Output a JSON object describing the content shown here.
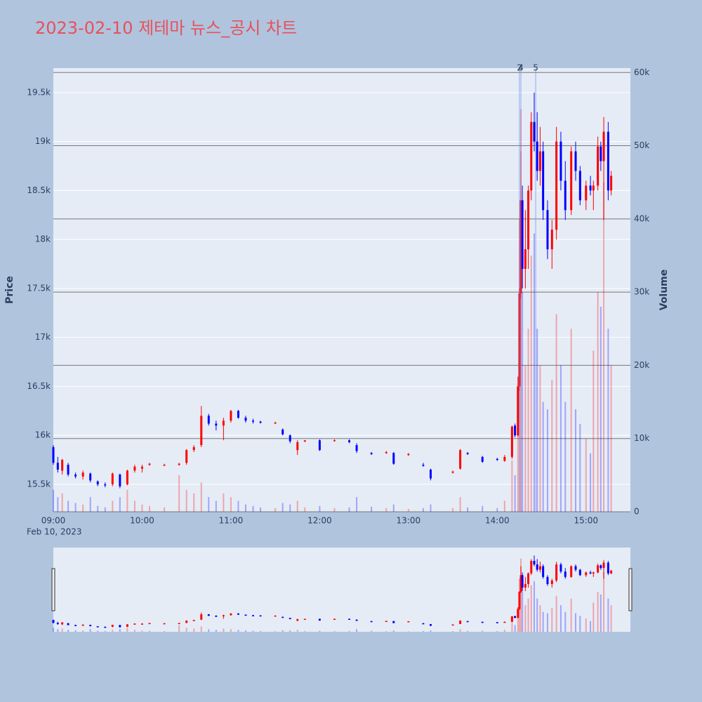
{
  "chart_data": {
    "type": "candlestick",
    "title": "2023-02-10 제테마 뉴스_공시 차트",
    "x_date_label": "Feb 10, 2023",
    "y_label": "Price",
    "y2_label": "Volume",
    "up_color": "#ff0000",
    "down_color": "#0000ff",
    "annotations": [
      {
        "x": "14:15",
        "text": "2"
      },
      {
        "x": "14:16",
        "text": "4"
      },
      {
        "x": "14:26",
        "text": "5"
      }
    ],
    "x": [
      "09:00",
      "09:03",
      "09:06",
      "09:10",
      "09:15",
      "09:20",
      "09:25",
      "09:30",
      "09:35",
      "09:40",
      "09:45",
      "09:50",
      "09:55",
      "10:00",
      "10:05",
      "10:15",
      "10:25",
      "10:30",
      "10:35",
      "10:40",
      "10:45",
      "10:50",
      "10:55",
      "11:00",
      "11:05",
      "11:10",
      "11:15",
      "11:20",
      "11:30",
      "11:35",
      "11:40",
      "11:45",
      "11:50",
      "12:00",
      "12:10",
      "12:20",
      "12:25",
      "12:35",
      "12:45",
      "12:50",
      "13:00",
      "13:10",
      "13:15",
      "13:30",
      "13:35",
      "13:40",
      "13:50",
      "14:00",
      "14:05",
      "14:10",
      "14:12",
      "14:14",
      "14:15",
      "14:16",
      "14:17",
      "14:19",
      "14:21",
      "14:23",
      "14:25",
      "14:27",
      "14:29",
      "14:31",
      "14:34",
      "14:37",
      "14:40",
      "14:43",
      "14:46",
      "14:50",
      "14:53",
      "14:56",
      "15:00",
      "15:03",
      "15:05",
      "15:08",
      "15:10",
      "15:12",
      "15:15",
      "15:17"
    ],
    "open": [
      15880,
      15720,
      15640,
      15700,
      15600,
      15580,
      15610,
      15530,
      15500,
      15500,
      15600,
      15500,
      15640,
      15660,
      15700,
      15700,
      15700,
      15720,
      15850,
      15900,
      16200,
      16120,
      16100,
      16150,
      16250,
      16180,
      16150,
      16140,
      16130,
      16060,
      16000,
      15850,
      15940,
      15950,
      15950,
      15950,
      15900,
      15820,
      15820,
      15820,
      15800,
      15700,
      15650,
      15620,
      15660,
      15820,
      15780,
      15760,
      15740,
      15780,
      16100,
      16000,
      16500,
      17450,
      18400,
      17700,
      17900,
      18500,
      19200,
      19000,
      18700,
      18900,
      18300,
      17900,
      18100,
      19000,
      18600,
      18300,
      18900,
      18700,
      18400,
      18550,
      18500,
      18550,
      18950,
      18800,
      19100,
      18500
    ],
    "high": [
      15900,
      15780,
      15760,
      15720,
      15620,
      15640,
      15620,
      15540,
      15520,
      15620,
      15610,
      15650,
      15700,
      15700,
      15720,
      15710,
      15720,
      15860,
      15900,
      16300,
      16220,
      16150,
      16180,
      16260,
      16260,
      16200,
      16170,
      16150,
      16140,
      16070,
      16010,
      15950,
      15950,
      15960,
      15960,
      15960,
      15920,
      15830,
      15840,
      15830,
      15820,
      15720,
      15660,
      15640,
      15860,
      15830,
      15790,
      15770,
      15800,
      16100,
      16120,
      16600,
      17500,
      18900,
      18550,
      18300,
      18550,
      19300,
      19500,
      19300,
      19150,
      19000,
      18400,
      18200,
      19150,
      19100,
      18800,
      18950,
      19000,
      18750,
      18600,
      18650,
      18600,
      19050,
      19000,
      19250,
      19200,
      18700
    ],
    "low": [
      15700,
      15620,
      15600,
      15580,
      15560,
      15550,
      15520,
      15480,
      15470,
      15480,
      15460,
      15490,
      15620,
      15620,
      15690,
      15690,
      15690,
      15700,
      15830,
      15880,
      16100,
      16050,
      15950,
      16130,
      16170,
      16130,
      16120,
      16120,
      16120,
      16000,
      15920,
      15800,
      15930,
      15840,
      15940,
      15920,
      15820,
      15800,
      15810,
      15700,
      15790,
      15680,
      15540,
      15610,
      15650,
      15800,
      15720,
      15740,
      15730,
      15760,
      15980,
      15990,
      16450,
      17400,
      17500,
      17500,
      17700,
      18400,
      18900,
      18600,
      18550,
      18200,
      17800,
      17700,
      18000,
      18500,
      18200,
      18250,
      18600,
      18350,
      18300,
      18450,
      18300,
      18500,
      18700,
      18200,
      18400,
      18450
    ],
    "close": [
      15720,
      15650,
      15750,
      15600,
      15580,
      15620,
      15540,
      15500,
      15490,
      15610,
      15480,
      15640,
      15680,
      15680,
      15710,
      15700,
      15710,
      15850,
      15880,
      16200,
      16120,
      16100,
      16150,
      16250,
      16180,
      16150,
      16140,
      16130,
      16130,
      16010,
      15940,
      15930,
      15950,
      15850,
      15950,
      15930,
      15840,
      15810,
      15830,
      15710,
      15810,
      15690,
      15560,
      15630,
      15850,
      15810,
      15730,
      15750,
      15780,
      16090,
      16000,
      16500,
      17450,
      18400,
      17700,
      17900,
      18500,
      19200,
      19000,
      18700,
      18900,
      18300,
      17900,
      18100,
      19000,
      18600,
      18300,
      18900,
      18700,
      18400,
      18550,
      18500,
      18550,
      18950,
      18800,
      19100,
      18500,
      18650
    ],
    "volume": [
      3000,
      2000,
      2500,
      1500,
      1200,
      1000,
      2000,
      800,
      600,
      1500,
      2000,
      3000,
      1500,
      1000,
      800,
      600,
      5000,
      3000,
      2500,
      4000,
      2000,
      1500,
      2500,
      2000,
      1500,
      1000,
      800,
      600,
      500,
      1200,
      1000,
      1500,
      600,
      800,
      500,
      600,
      2000,
      700,
      500,
      1000,
      400,
      500,
      1000,
      500,
      2000,
      600,
      800,
      500,
      1500,
      7000,
      5000,
      12000,
      40000,
      55000,
      30000,
      20000,
      25000,
      35000,
      38000,
      25000,
      20000,
      15000,
      14000,
      18000,
      27000,
      20000,
      15000,
      25000,
      14000,
      12000,
      10000,
      8000,
      22000,
      30000,
      28000,
      45000,
      25000,
      20000
    ],
    "xlim": [
      "09:00",
      "15:30"
    ],
    "xticks": [
      "09:00",
      "10:00",
      "11:00",
      "12:00",
      "13:00",
      "14:00",
      "15:00"
    ],
    "ylim": [
      15220,
      19750
    ],
    "yticks": [
      {
        "value": 15500,
        "label": "15.5k"
      },
      {
        "value": 16000,
        "label": "16k"
      },
      {
        "value": 16500,
        "label": "16.5k"
      },
      {
        "value": 17000,
        "label": "17k"
      },
      {
        "value": 17500,
        "label": "17.5k"
      },
      {
        "value": 18000,
        "label": "18k"
      },
      {
        "value": 18500,
        "label": "18.5k"
      },
      {
        "value": 19000,
        "label": "19k"
      },
      {
        "value": 19500,
        "label": "19.5k"
      }
    ],
    "y2lim": [
      0,
      60600
    ],
    "y2ticks": [
      0,
      {
        "value": 10000,
        "label": "10k"
      },
      {
        "value": 20000,
        "label": "20k"
      },
      {
        "value": 30000,
        "label": "30k"
      },
      {
        "value": 40000,
        "label": "40k"
      },
      {
        "value": 50000,
        "label": "50k"
      },
      {
        "value": 60000,
        "label": "60k"
      }
    ]
  }
}
